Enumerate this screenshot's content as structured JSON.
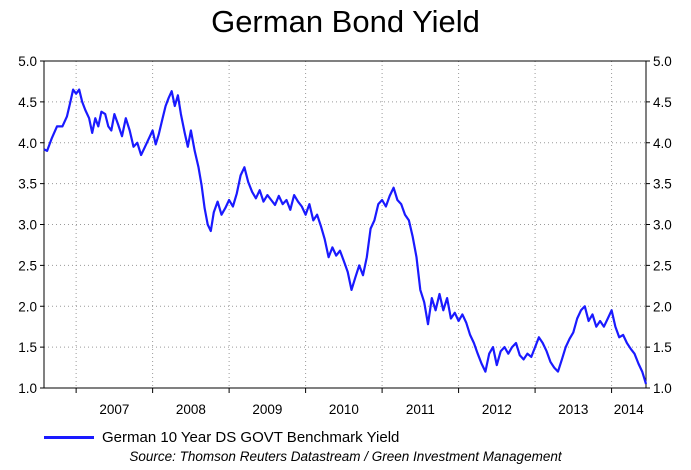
{
  "chart_data": {
    "type": "line",
    "title": "German Bond Yield",
    "xlabel": "",
    "ylabel": "",
    "ylim": [
      1.0,
      5.0
    ],
    "yticks": [
      "1.0",
      "1.5",
      "2.0",
      "2.5",
      "3.0",
      "3.5",
      "4.0",
      "4.5",
      "5.0"
    ],
    "xlim": [
      2006.58,
      2014.45
    ],
    "x_tick_labels": [
      "2007",
      "2008",
      "2009",
      "2010",
      "2011",
      "2012",
      "2013",
      "2014"
    ],
    "grid": true,
    "legend_position": "bottom-left",
    "source": "Source: Thomson Reuters Datastream / Green Investment Management",
    "series": [
      {
        "name": "German 10 Year DS GOVT Benchmark Yield",
        "color": "#1a1aff",
        "points": [
          [
            2006.58,
            3.92
          ],
          [
            2006.62,
            3.9
          ],
          [
            2006.68,
            4.05
          ],
          [
            2006.75,
            4.2
          ],
          [
            2006.82,
            4.2
          ],
          [
            2006.88,
            4.32
          ],
          [
            2006.92,
            4.48
          ],
          [
            2006.96,
            4.65
          ],
          [
            2007.0,
            4.6
          ],
          [
            2007.04,
            4.65
          ],
          [
            2007.08,
            4.5
          ],
          [
            2007.12,
            4.4
          ],
          [
            2007.17,
            4.3
          ],
          [
            2007.21,
            4.12
          ],
          [
            2007.25,
            4.3
          ],
          [
            2007.29,
            4.2
          ],
          [
            2007.33,
            4.38
          ],
          [
            2007.38,
            4.35
          ],
          [
            2007.42,
            4.2
          ],
          [
            2007.46,
            4.15
          ],
          [
            2007.5,
            4.35
          ],
          [
            2007.55,
            4.22
          ],
          [
            2007.6,
            4.08
          ],
          [
            2007.65,
            4.3
          ],
          [
            2007.7,
            4.15
          ],
          [
            2007.75,
            3.95
          ],
          [
            2007.8,
            4.0
          ],
          [
            2007.85,
            3.85
          ],
          [
            2007.9,
            3.95
          ],
          [
            2007.95,
            4.05
          ],
          [
            2008.0,
            4.15
          ],
          [
            2008.04,
            3.98
          ],
          [
            2008.08,
            4.1
          ],
          [
            2008.13,
            4.3
          ],
          [
            2008.17,
            4.45
          ],
          [
            2008.21,
            4.55
          ],
          [
            2008.25,
            4.63
          ],
          [
            2008.29,
            4.45
          ],
          [
            2008.33,
            4.58
          ],
          [
            2008.37,
            4.35
          ],
          [
            2008.42,
            4.12
          ],
          [
            2008.46,
            3.95
          ],
          [
            2008.5,
            4.15
          ],
          [
            2008.55,
            3.9
          ],
          [
            2008.6,
            3.7
          ],
          [
            2008.64,
            3.48
          ],
          [
            2008.68,
            3.2
          ],
          [
            2008.72,
            3.0
          ],
          [
            2008.76,
            2.92
          ],
          [
            2008.8,
            3.15
          ],
          [
            2008.85,
            3.28
          ],
          [
            2008.9,
            3.12
          ],
          [
            2008.95,
            3.2
          ],
          [
            2009.0,
            3.3
          ],
          [
            2009.05,
            3.22
          ],
          [
            2009.1,
            3.38
          ],
          [
            2009.15,
            3.6
          ],
          [
            2009.2,
            3.7
          ],
          [
            2009.25,
            3.52
          ],
          [
            2009.3,
            3.4
          ],
          [
            2009.35,
            3.32
          ],
          [
            2009.4,
            3.42
          ],
          [
            2009.45,
            3.28
          ],
          [
            2009.5,
            3.36
          ],
          [
            2009.55,
            3.3
          ],
          [
            2009.6,
            3.24
          ],
          [
            2009.65,
            3.35
          ],
          [
            2009.7,
            3.25
          ],
          [
            2009.75,
            3.3
          ],
          [
            2009.8,
            3.18
          ],
          [
            2009.85,
            3.36
          ],
          [
            2009.9,
            3.28
          ],
          [
            2009.95,
            3.22
          ],
          [
            2010.0,
            3.12
          ],
          [
            2010.05,
            3.25
          ],
          [
            2010.1,
            3.05
          ],
          [
            2010.15,
            3.12
          ],
          [
            2010.2,
            2.98
          ],
          [
            2010.25,
            2.82
          ],
          [
            2010.3,
            2.6
          ],
          [
            2010.35,
            2.72
          ],
          [
            2010.4,
            2.62
          ],
          [
            2010.45,
            2.68
          ],
          [
            2010.5,
            2.55
          ],
          [
            2010.55,
            2.42
          ],
          [
            2010.6,
            2.2
          ],
          [
            2010.65,
            2.35
          ],
          [
            2010.7,
            2.5
          ],
          [
            2010.75,
            2.38
          ],
          [
            2010.8,
            2.6
          ],
          [
            2010.85,
            2.95
          ],
          [
            2010.9,
            3.05
          ],
          [
            2010.95,
            3.25
          ],
          [
            2011.0,
            3.3
          ],
          [
            2011.05,
            3.22
          ],
          [
            2011.1,
            3.35
          ],
          [
            2011.15,
            3.45
          ],
          [
            2011.2,
            3.3
          ],
          [
            2011.25,
            3.25
          ],
          [
            2011.3,
            3.12
          ],
          [
            2011.35,
            3.05
          ],
          [
            2011.4,
            2.85
          ],
          [
            2011.45,
            2.6
          ],
          [
            2011.5,
            2.2
          ],
          [
            2011.55,
            2.05
          ],
          [
            2011.6,
            1.78
          ],
          [
            2011.65,
            2.1
          ],
          [
            2011.7,
            1.95
          ],
          [
            2011.75,
            2.15
          ],
          [
            2011.8,
            1.95
          ],
          [
            2011.85,
            2.1
          ],
          [
            2011.9,
            1.85
          ],
          [
            2011.95,
            1.92
          ],
          [
            2012.0,
            1.82
          ],
          [
            2012.05,
            1.9
          ],
          [
            2012.1,
            1.8
          ],
          [
            2012.15,
            1.65
          ],
          [
            2012.2,
            1.55
          ],
          [
            2012.25,
            1.42
          ],
          [
            2012.3,
            1.3
          ],
          [
            2012.35,
            1.2
          ],
          [
            2012.4,
            1.42
          ],
          [
            2012.45,
            1.5
          ],
          [
            2012.5,
            1.28
          ],
          [
            2012.55,
            1.45
          ],
          [
            2012.6,
            1.5
          ],
          [
            2012.65,
            1.42
          ],
          [
            2012.7,
            1.5
          ],
          [
            2012.75,
            1.55
          ],
          [
            2012.8,
            1.4
          ],
          [
            2012.85,
            1.35
          ],
          [
            2012.9,
            1.42
          ],
          [
            2012.95,
            1.38
          ],
          [
            2013.0,
            1.5
          ],
          [
            2013.05,
            1.62
          ],
          [
            2013.1,
            1.55
          ],
          [
            2013.15,
            1.45
          ],
          [
            2013.2,
            1.32
          ],
          [
            2013.25,
            1.25
          ],
          [
            2013.3,
            1.2
          ],
          [
            2013.35,
            1.35
          ],
          [
            2013.4,
            1.5
          ],
          [
            2013.45,
            1.6
          ],
          [
            2013.5,
            1.68
          ],
          [
            2013.55,
            1.85
          ],
          [
            2013.6,
            1.95
          ],
          [
            2013.65,
            2.0
          ],
          [
            2013.7,
            1.82
          ],
          [
            2013.75,
            1.9
          ],
          [
            2013.8,
            1.75
          ],
          [
            2013.85,
            1.82
          ],
          [
            2013.9,
            1.75
          ],
          [
            2013.95,
            1.85
          ],
          [
            2014.0,
            1.95
          ],
          [
            2014.05,
            1.75
          ],
          [
            2014.1,
            1.62
          ],
          [
            2014.15,
            1.65
          ],
          [
            2014.2,
            1.55
          ],
          [
            2014.25,
            1.48
          ],
          [
            2014.3,
            1.42
          ],
          [
            2014.35,
            1.3
          ],
          [
            2014.4,
            1.2
          ],
          [
            2014.45,
            1.05
          ]
        ]
      }
    ]
  }
}
